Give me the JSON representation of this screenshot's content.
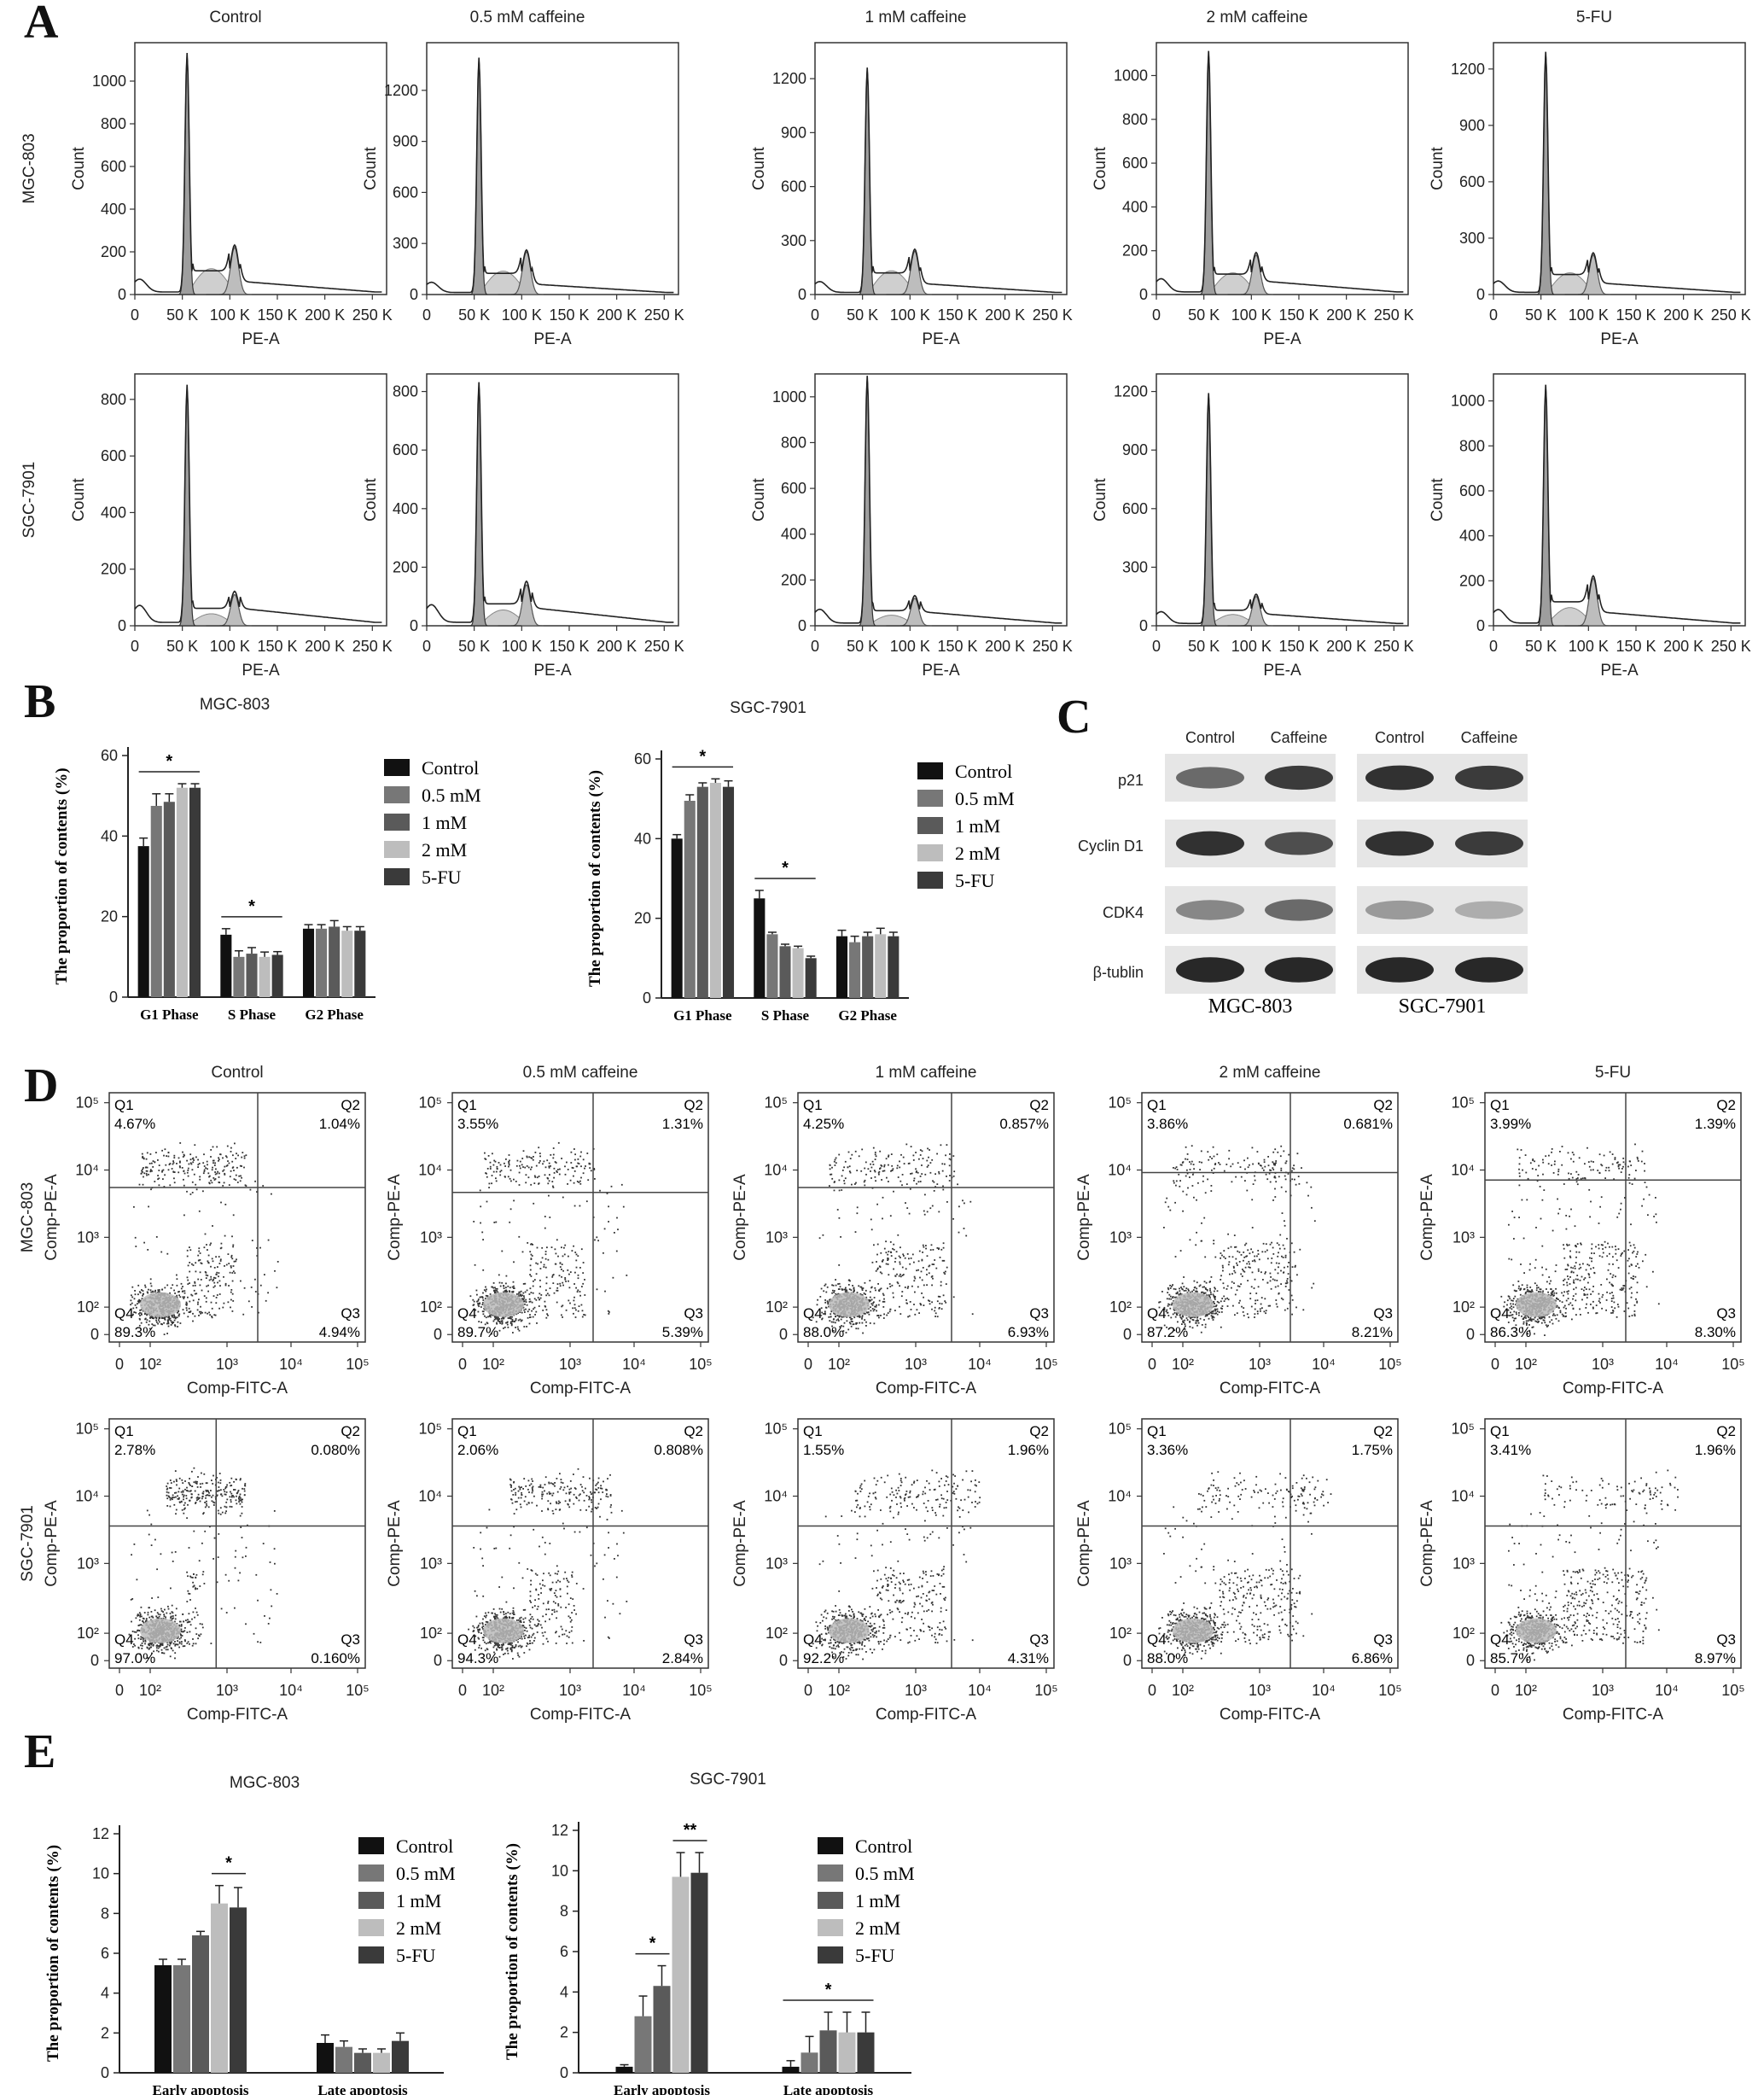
{
  "panels": {
    "A": {
      "letter": "A",
      "col_titles": [
        "Control",
        "0.5 mM caffeine",
        "1 mM caffeine",
        "2 mM caffeine",
        "5-FU"
      ],
      "row_labels": [
        "MGC-803",
        "SGC-7901"
      ],
      "xlabel": "PE-A",
      "ylabel": "Count",
      "x_ticks": [
        "0",
        "50 K",
        "100 K",
        "150 K",
        "200 K",
        "250 K"
      ],
      "y_ticks": [
        [
          [
            "0",
            "200",
            "400",
            "600",
            "800",
            "1000"
          ],
          [
            "0",
            "300",
            "600",
            "900",
            "1200"
          ],
          [
            "0",
            "300",
            "600",
            "900",
            "1200"
          ],
          [
            "0",
            "200",
            "400",
            "600",
            "800",
            "1000"
          ],
          [
            "0",
            "300",
            "600",
            "900",
            "1200"
          ]
        ],
        [
          [
            "0",
            "200",
            "400",
            "600",
            "800"
          ],
          [
            "0",
            "200",
            "400",
            "600",
            "800"
          ],
          [
            "0",
            "200",
            "400",
            "600",
            "800",
            "1000"
          ],
          [
            "0",
            "300",
            "600",
            "900",
            "1200"
          ],
          [
            "0",
            "200",
            "400",
            "600",
            "800",
            "1000"
          ]
        ]
      ],
      "y_max": [
        [
          1180,
          1480,
          1400,
          1150,
          1340
        ],
        [
          890,
          860,
          1100,
          1290,
          1120
        ]
      ],
      "peak_heights": [
        [
          1120,
          1380,
          1250,
          1100,
          1280
        ],
        [
          840,
          820,
          1080,
          1180,
          1060
        ]
      ],
      "g2_heights": [
        [
          220,
          250,
          240,
          180,
          210
        ],
        [
          110,
          140,
          120,
          150,
          210
        ]
      ]
    },
    "B": {
      "letter": "B",
      "chart_data": [
        {
          "type": "bar",
          "title": "MGC-803",
          "ylabel": "The proportion of contents (%)",
          "categories": [
            "G1 Phase",
            "S Phase",
            "G2 Phase"
          ],
          "ylim": [
            0,
            60
          ],
          "y_ticks": [
            "0",
            "20",
            "40",
            "60"
          ],
          "series": [
            {
              "name": "Control",
              "color": "#111111",
              "values": [
                37.5,
                15.5,
                17
              ],
              "errors": [
                2,
                1.5,
                1
              ]
            },
            {
              "name": "0.5 mM",
              "color": "#777777",
              "values": [
                47.5,
                10,
                17
              ],
              "errors": [
                3,
                1.5,
                1
              ]
            },
            {
              "name": "1 mM",
              "color": "#5a5a5a",
              "values": [
                48.5,
                10.8,
                17.5
              ],
              "errors": [
                2,
                1.5,
                1.5
              ]
            },
            {
              "name": "2 mM",
              "color": "#bdbdbd",
              "values": [
                52,
                10,
                16.5
              ],
              "errors": [
                1,
                1.2,
                1
              ]
            },
            {
              "name": "5-FU",
              "color": "#3a3a3a",
              "values": [
                52,
                10.5,
                16.5
              ],
              "errors": [
                1,
                0.8,
                1
              ]
            }
          ],
          "significance": [
            {
              "label": "*",
              "category": 0
            },
            {
              "label": "*",
              "category": 1
            }
          ]
        },
        {
          "type": "bar",
          "title": "SGC-7901",
          "ylabel": "The proportion of contents (%)",
          "categories": [
            "G1 Phase",
            "S Phase",
            "G2 Phase"
          ],
          "ylim": [
            0,
            60
          ],
          "y_ticks": [
            "0",
            "20",
            "40",
            "60"
          ],
          "series": [
            {
              "name": "Control",
              "color": "#111111",
              "values": [
                40,
                25,
                15.5
              ],
              "errors": [
                1,
                2,
                1.5
              ]
            },
            {
              "name": "0.5 mM",
              "color": "#777777",
              "values": [
                49.5,
                16,
                14
              ],
              "errors": [
                1.5,
                0.5,
                1.5
              ]
            },
            {
              "name": "1 mM",
              "color": "#5a5a5a",
              "values": [
                53,
                13,
                15.5
              ],
              "errors": [
                1,
                0.5,
                1
              ]
            },
            {
              "name": "2 mM",
              "color": "#bdbdbd",
              "values": [
                54,
                12.5,
                16
              ],
              "errors": [
                1,
                0.5,
                1.5
              ]
            },
            {
              "name": "5-FU",
              "color": "#3a3a3a",
              "values": [
                53,
                10,
                15.5
              ],
              "errors": [
                1.5,
                0.5,
                1
              ]
            }
          ],
          "significance": [
            {
              "label": "*",
              "category": 0
            },
            {
              "label": "*",
              "category": 1
            }
          ]
        }
      ]
    },
    "C": {
      "letter": "C",
      "lane_labels": [
        "Control",
        "Caffeine",
        "Control",
        "Caffeine"
      ],
      "proteins": [
        "p21",
        "Cyclin D1",
        "CDK4",
        "β-tublin"
      ],
      "cell_lines": [
        "MGC-803",
        "SGC-7901"
      ],
      "band_intensity": [
        [
          0.6,
          0.85,
          0.9,
          0.85
        ],
        [
          0.9,
          0.75,
          0.9,
          0.85
        ],
        [
          0.45,
          0.6,
          0.35,
          0.25
        ],
        [
          0.95,
          0.95,
          0.95,
          0.95
        ]
      ]
    },
    "D": {
      "letter": "D",
      "col_titles": [
        "Control",
        "0.5 mM caffeine",
        "1 mM caffeine",
        "2 mM caffeine",
        "5-FU"
      ],
      "row_labels": [
        "MGC-803",
        "SGC-7901"
      ],
      "xlabel": "Comp-FITC-A",
      "ylabel": "Comp-PE-A",
      "x_ticks": [
        "0",
        "10²",
        "10³",
        "10⁴",
        "10⁵"
      ],
      "y_ticks": [
        "0",
        "10²",
        "10³",
        "10⁴",
        "10⁵"
      ],
      "quadrant_names": [
        "Q1",
        "Q2",
        "Q3",
        "Q4"
      ],
      "quadrants": [
        [
          [
            "4.67%",
            "1.04%",
            "4.94%",
            "89.3%"
          ],
          [
            "3.55%",
            "1.31%",
            "5.39%",
            "89.7%"
          ],
          [
            "4.25%",
            "0.857%",
            "6.93%",
            "88.0%"
          ],
          [
            "3.86%",
            "0.681%",
            "8.21%",
            "87.2%"
          ],
          [
            "3.99%",
            "1.39%",
            "8.30%",
            "86.3%"
          ]
        ],
        [
          [
            "2.78%",
            "0.080%",
            "0.160%",
            "97.0%"
          ],
          [
            "2.06%",
            "0.808%",
            "2.84%",
            "94.3%"
          ],
          [
            "1.55%",
            "1.96%",
            "4.31%",
            "92.2%"
          ],
          [
            "3.36%",
            "1.75%",
            "6.86%",
            "88.0%"
          ],
          [
            "3.41%",
            "1.96%",
            "8.97%",
            "85.7%"
          ]
        ]
      ]
    },
    "E": {
      "letter": "E",
      "chart_data": [
        {
          "type": "bar",
          "title": "MGC-803",
          "ylabel": "The proportion of contents (%)",
          "categories": [
            "Early apoptosis",
            "Late apoptosis"
          ],
          "ylim": [
            0,
            12
          ],
          "y_ticks": [
            "0",
            "2",
            "4",
            "6",
            "8",
            "10",
            "12"
          ],
          "series": [
            {
              "name": "Control",
              "color": "#111111",
              "values": [
                5.4,
                1.5
              ],
              "errors": [
                0.3,
                0.4
              ]
            },
            {
              "name": "0.5 mM",
              "color": "#777777",
              "values": [
                5.4,
                1.3
              ],
              "errors": [
                0.3,
                0.3
              ]
            },
            {
              "name": "1 mM",
              "color": "#5a5a5a",
              "values": [
                6.9,
                1.0
              ],
              "errors": [
                0.2,
                0.2
              ]
            },
            {
              "name": "2 mM",
              "color": "#bdbdbd",
              "values": [
                8.5,
                1.0
              ],
              "errors": [
                0.9,
                0.2
              ]
            },
            {
              "name": "5-FU",
              "color": "#3a3a3a",
              "values": [
                8.3,
                1.6
              ],
              "errors": [
                1.0,
                0.4
              ]
            }
          ],
          "significance": [
            {
              "label": "*",
              "from": 3,
              "to": 4,
              "category": 0
            }
          ]
        },
        {
          "type": "bar",
          "title": "SGC-7901",
          "ylabel": "The proportion of contents (%)",
          "categories": [
            "Early apoptosis",
            "Late apoptosis"
          ],
          "ylim": [
            0,
            12
          ],
          "y_ticks": [
            "0",
            "2",
            "4",
            "6",
            "8",
            "10",
            "12"
          ],
          "series": [
            {
              "name": "Control",
              "color": "#111111",
              "values": [
                0.3,
                0.3
              ],
              "errors": [
                0.1,
                0.3
              ]
            },
            {
              "name": "0.5 mM",
              "color": "#777777",
              "values": [
                2.8,
                1.0
              ],
              "errors": [
                1.0,
                0.8
              ]
            },
            {
              "name": "1 mM",
              "color": "#5a5a5a",
              "values": [
                4.3,
                2.1
              ],
              "errors": [
                1.0,
                0.9
              ]
            },
            {
              "name": "2 mM",
              "color": "#bdbdbd",
              "values": [
                9.7,
                2.0
              ],
              "errors": [
                1.2,
                1.0
              ]
            },
            {
              "name": "5-FU",
              "color": "#3a3a3a",
              "values": [
                9.9,
                2.0
              ],
              "errors": [
                1.0,
                1.0
              ]
            }
          ],
          "significance": [
            {
              "label": "*",
              "from": 1,
              "to": 2,
              "category": 0
            },
            {
              "label": "**",
              "from": 3,
              "to": 4,
              "category": 0
            },
            {
              "label": "*",
              "from": 0,
              "to": 4,
              "category": 1
            }
          ]
        }
      ]
    }
  }
}
